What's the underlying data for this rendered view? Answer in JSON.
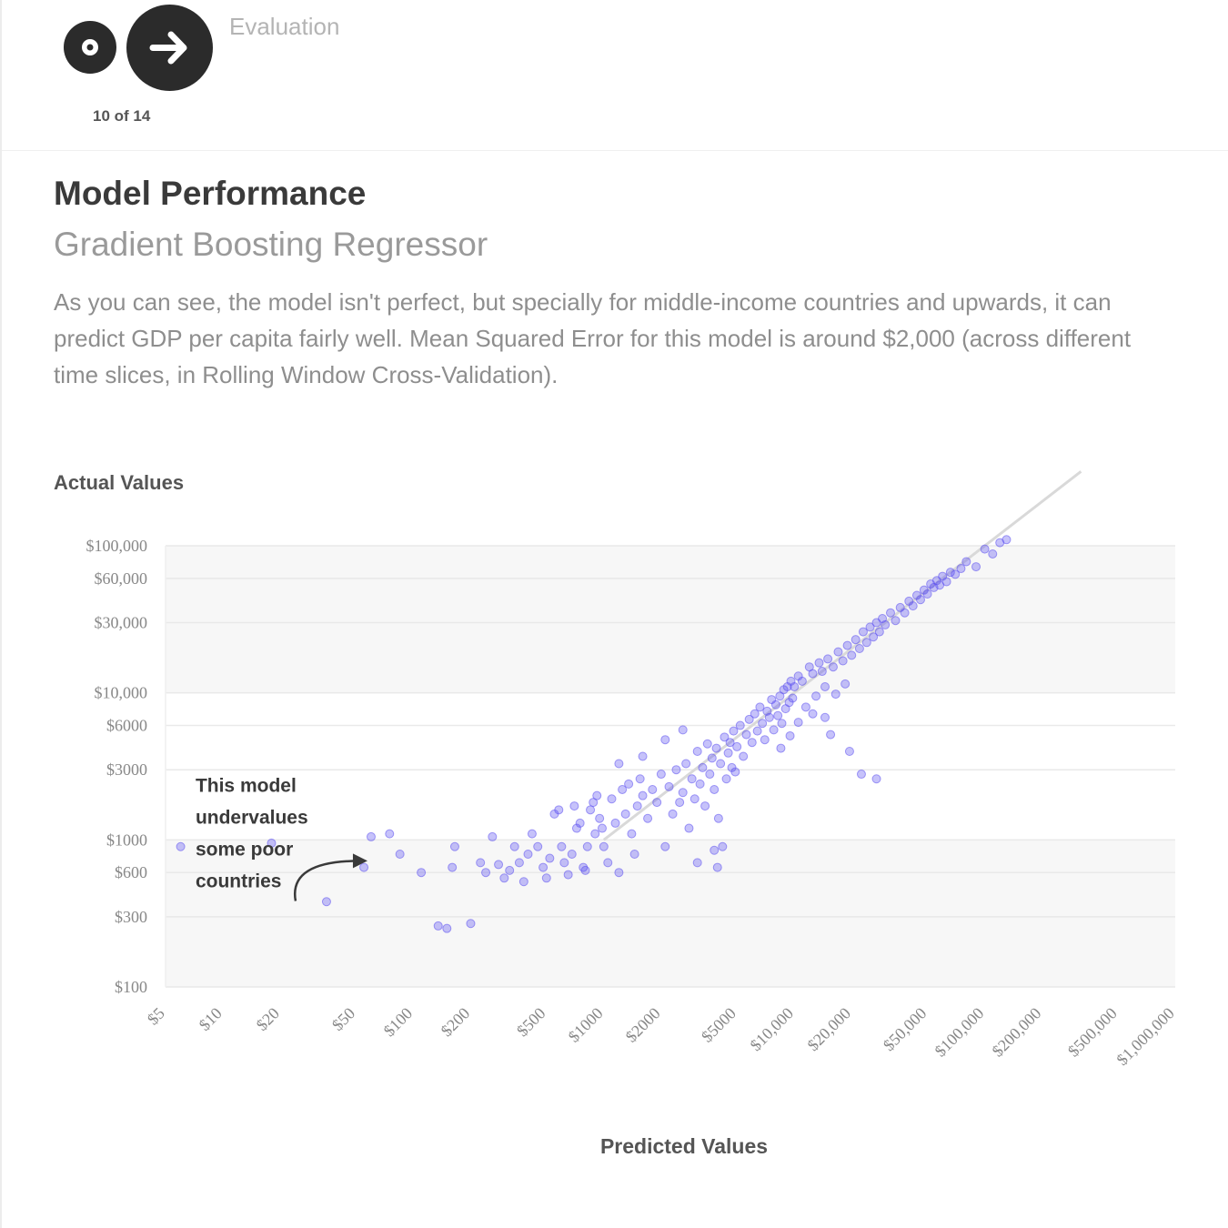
{
  "nav": {
    "section": "Evaluation",
    "step_counter": "10 of 14",
    "prev_icon": "circle-dot-icon",
    "next_icon": "arrow-right-icon"
  },
  "header": {
    "title": "Model Performance",
    "subtitle": "Gradient Boosting Regressor",
    "description": "As you can see, the model isn't perfect, but specially for middle-income countries and upwards, it can predict GDP per capita fairly well. Mean Squared Error for this model is around $2,000 (across different time slices, in Rolling Window Cross-Validation)."
  },
  "chart_data": {
    "type": "scatter",
    "xlabel": "Predicted Values",
    "ylabel": "Actual Values",
    "x_scale": "log",
    "y_scale": "log",
    "xlim": [
      5,
      1000000
    ],
    "ylim": [
      100,
      100000
    ],
    "y_ticks": [
      {
        "value": 100000,
        "label": "$100,000"
      },
      {
        "value": 60000,
        "label": "$60,000"
      },
      {
        "value": 30000,
        "label": "$30,000"
      },
      {
        "value": 10000,
        "label": "$10,000"
      },
      {
        "value": 6000,
        "label": "$6000"
      },
      {
        "value": 3000,
        "label": "$3000"
      },
      {
        "value": 1000,
        "label": "$1000"
      },
      {
        "value": 600,
        "label": "$600"
      },
      {
        "value": 300,
        "label": "$300"
      },
      {
        "value": 100,
        "label": "$100"
      }
    ],
    "x_ticks": [
      {
        "value": 5,
        "label": "$5"
      },
      {
        "value": 10,
        "label": "$10"
      },
      {
        "value": 20,
        "label": "$20"
      },
      {
        "value": 50,
        "label": "$50"
      },
      {
        "value": 100,
        "label": "$100"
      },
      {
        "value": 200,
        "label": "$200"
      },
      {
        "value": 500,
        "label": "$500"
      },
      {
        "value": 1000,
        "label": "$1000"
      },
      {
        "value": 2000,
        "label": "$2000"
      },
      {
        "value": 5000,
        "label": "$5000"
      },
      {
        "value": 10000,
        "label": "$10,000"
      },
      {
        "value": 20000,
        "label": "$20,000"
      },
      {
        "value": 50000,
        "label": "$50,000"
      },
      {
        "value": 100000,
        "label": "$100,000"
      },
      {
        "value": 200000,
        "label": "$200,000"
      },
      {
        "value": 500000,
        "label": "$500,000"
      },
      {
        "value": 1000000,
        "label": "$1,000,000"
      }
    ],
    "point_color": "#5b4ff0",
    "reference_line": "y = x",
    "annotation": {
      "lines": [
        "This model",
        "undervalues",
        "some poor",
        "countries"
      ],
      "x": 30,
      "y": 1200,
      "arrow_to": {
        "x": 60,
        "y": 700
      }
    },
    "points": [
      [
        6,
        900
      ],
      [
        18,
        950
      ],
      [
        35,
        380
      ],
      [
        55,
        650
      ],
      [
        60,
        1050
      ],
      [
        75,
        1100
      ],
      [
        85,
        800
      ],
      [
        110,
        600
      ],
      [
        135,
        260
      ],
      [
        150,
        250
      ],
      [
        160,
        650
      ],
      [
        165,
        900
      ],
      [
        200,
        270
      ],
      [
        225,
        700
      ],
      [
        240,
        600
      ],
      [
        260,
        1050
      ],
      [
        280,
        680
      ],
      [
        300,
        550
      ],
      [
        320,
        620
      ],
      [
        340,
        900
      ],
      [
        360,
        700
      ],
      [
        380,
        520
      ],
      [
        400,
        800
      ],
      [
        420,
        1100
      ],
      [
        450,
        900
      ],
      [
        480,
        650
      ],
      [
        500,
        550
      ],
      [
        520,
        750
      ],
      [
        550,
        1500
      ],
      [
        580,
        1600
      ],
      [
        600,
        900
      ],
      [
        620,
        700
      ],
      [
        650,
        580
      ],
      [
        680,
        800
      ],
      [
        700,
        1700
      ],
      [
        720,
        1200
      ],
      [
        750,
        1300
      ],
      [
        780,
        650
      ],
      [
        800,
        620
      ],
      [
        820,
        900
      ],
      [
        850,
        1600
      ],
      [
        880,
        1800
      ],
      [
        900,
        1100
      ],
      [
        920,
        2000
      ],
      [
        950,
        1400
      ],
      [
        980,
        1200
      ],
      [
        1000,
        900
      ],
      [
        1050,
        700
      ],
      [
        1100,
        1900
      ],
      [
        1150,
        1300
      ],
      [
        1200,
        600
      ],
      [
        1250,
        2200
      ],
      [
        1300,
        1500
      ],
      [
        1350,
        2400
      ],
      [
        1400,
        1100
      ],
      [
        1450,
        800
      ],
      [
        1500,
        1700
      ],
      [
        1550,
        2600
      ],
      [
        1600,
        2000
      ],
      [
        1700,
        1400
      ],
      [
        1800,
        2200
      ],
      [
        1900,
        1800
      ],
      [
        2000,
        2800
      ],
      [
        2100,
        900
      ],
      [
        2200,
        2300
      ],
      [
        2300,
        1500
      ],
      [
        2400,
        3000
      ],
      [
        2500,
        1800
      ],
      [
        2600,
        2100
      ],
      [
        2700,
        3300
      ],
      [
        2800,
        1200
      ],
      [
        2900,
        2600
      ],
      [
        3000,
        1900
      ],
      [
        3100,
        4000
      ],
      [
        3200,
        2400
      ],
      [
        3300,
        3100
      ],
      [
        3400,
        1700
      ],
      [
        3500,
        4500
      ],
      [
        3600,
        2800
      ],
      [
        3700,
        3600
      ],
      [
        3800,
        2200
      ],
      [
        3900,
        4200
      ],
      [
        4000,
        1400
      ],
      [
        4100,
        3300
      ],
      [
        4200,
        900
      ],
      [
        4300,
        5000
      ],
      [
        4400,
        2600
      ],
      [
        4500,
        3900
      ],
      [
        4600,
        4600
      ],
      [
        4700,
        3100
      ],
      [
        4800,
        5500
      ],
      [
        4900,
        2900
      ],
      [
        5000,
        4300
      ],
      [
        5200,
        6000
      ],
      [
        5400,
        3700
      ],
      [
        5600,
        5200
      ],
      [
        5800,
        6600
      ],
      [
        6000,
        4600
      ],
      [
        6200,
        7200
      ],
      [
        6400,
        5500
      ],
      [
        6600,
        8000
      ],
      [
        6800,
        6200
      ],
      [
        7000,
        4800
      ],
      [
        7200,
        7500
      ],
      [
        7400,
        6800
      ],
      [
        7600,
        9000
      ],
      [
        7800,
        5600
      ],
      [
        8000,
        8300
      ],
      [
        8200,
        7000
      ],
      [
        8400,
        9500
      ],
      [
        8600,
        6200
      ],
      [
        8800,
        10500
      ],
      [
        9000,
        7800
      ],
      [
        9200,
        11000
      ],
      [
        9400,
        8600
      ],
      [
        9600,
        12000
      ],
      [
        9800,
        9200
      ],
      [
        10000,
        11000
      ],
      [
        10500,
        13000
      ],
      [
        11000,
        12000
      ],
      [
        11500,
        8000
      ],
      [
        12000,
        15000
      ],
      [
        12500,
        13500
      ],
      [
        13000,
        9500
      ],
      [
        13500,
        16000
      ],
      [
        14000,
        14000
      ],
      [
        14500,
        11000
      ],
      [
        15000,
        17000
      ],
      [
        16000,
        15000
      ],
      [
        17000,
        19000
      ],
      [
        18000,
        16500
      ],
      [
        19000,
        21000
      ],
      [
        20000,
        18000
      ],
      [
        21000,
        23000
      ],
      [
        22000,
        20000
      ],
      [
        23000,
        26000
      ],
      [
        24000,
        22000
      ],
      [
        25000,
        28000
      ],
      [
        26000,
        24000
      ],
      [
        27000,
        30000
      ],
      [
        28000,
        26000
      ],
      [
        29000,
        32000
      ],
      [
        30000,
        29000
      ],
      [
        32000,
        35000
      ],
      [
        34000,
        31000
      ],
      [
        36000,
        38000
      ],
      [
        38000,
        35000
      ],
      [
        40000,
        42000
      ],
      [
        42000,
        39000
      ],
      [
        44000,
        46000
      ],
      [
        46000,
        43000
      ],
      [
        48000,
        50000
      ],
      [
        50000,
        47000
      ],
      [
        52000,
        55000
      ],
      [
        54000,
        52000
      ],
      [
        56000,
        58000
      ],
      [
        58000,
        54000
      ],
      [
        60000,
        62000
      ],
      [
        63000,
        57000
      ],
      [
        66000,
        66000
      ],
      [
        70000,
        64000
      ],
      [
        75000,
        70000
      ],
      [
        80000,
        78000
      ],
      [
        90000,
        72000
      ],
      [
        100000,
        95000
      ],
      [
        110000,
        88000
      ],
      [
        120000,
        105000
      ],
      [
        130000,
        110000
      ],
      [
        8500,
        4200
      ],
      [
        9500,
        5100
      ],
      [
        10500,
        6300
      ],
      [
        12500,
        7200
      ],
      [
        14500,
        6800
      ],
      [
        16500,
        9800
      ],
      [
        18500,
        11500
      ],
      [
        15500,
        5200
      ],
      [
        19500,
        4000
      ],
      [
        22500,
        2800
      ],
      [
        27000,
        2600
      ],
      [
        3100,
        700
      ],
      [
        3800,
        850
      ],
      [
        3950,
        650
      ],
      [
        1200,
        3300
      ],
      [
        1600,
        3700
      ],
      [
        2100,
        4800
      ],
      [
        2600,
        5600
      ]
    ]
  }
}
